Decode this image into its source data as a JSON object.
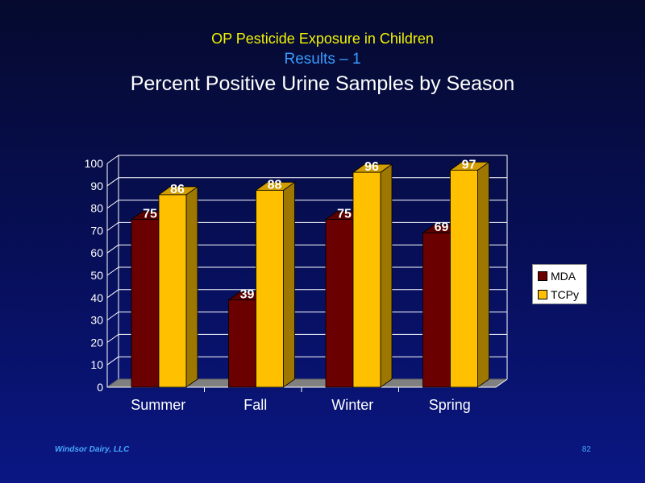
{
  "slide": {
    "title_line1": "OP Pesticide Exposure in Children",
    "title_line2": "Results – 1",
    "title_line3": "Percent Positive Urine Samples by Season",
    "footer_left": "Windsor Dairy, LLC",
    "page_number": "82"
  },
  "colors": {
    "mda": "#6b0000",
    "tcpy": "#ffc000",
    "title_line1": "#f2f200",
    "title_line2": "#3a9cff"
  },
  "chart_data": {
    "type": "bar",
    "categories": [
      "Summer",
      "Fall",
      "Winter",
      "Spring"
    ],
    "series": [
      {
        "name": "MDA",
        "values": [
          75,
          39,
          75,
          69
        ]
      },
      {
        "name": "TCPy",
        "values": [
          86,
          88,
          96,
          97
        ]
      }
    ],
    "yticks": [
      "0",
      "10",
      "20",
      "30",
      "40",
      "50",
      "60",
      "70",
      "80",
      "90",
      "100"
    ],
    "ylim": [
      0,
      100
    ],
    "grid": true,
    "legend": "right",
    "three_d": true
  }
}
